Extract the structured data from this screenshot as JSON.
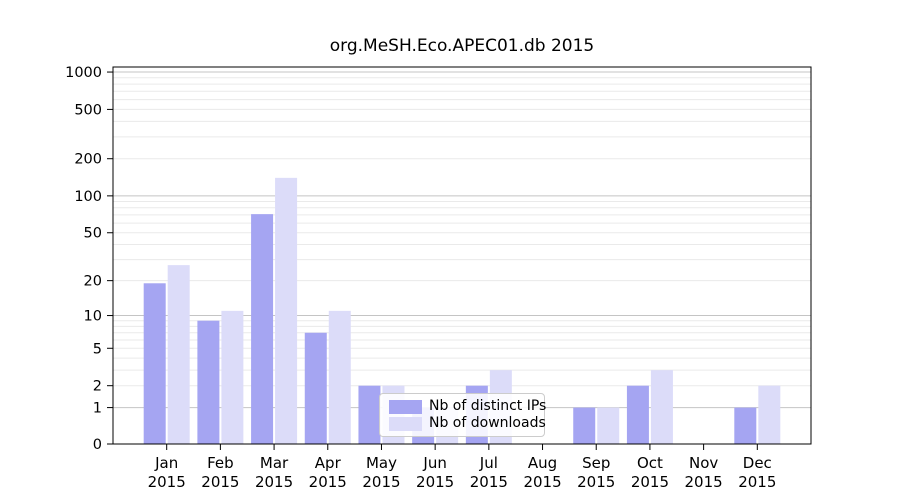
{
  "chart_data": {
    "type": "bar",
    "title": "org.MeSH.Eco.APEC01.db 2015",
    "categories": [
      "Jan",
      "Feb",
      "Mar",
      "Apr",
      "May",
      "Jun",
      "Jul",
      "Aug",
      "Sep",
      "Oct",
      "Nov",
      "Dec"
    ],
    "category_sub_label": "2015",
    "series": [
      {
        "name": "Nb of distinct IPs",
        "color": "#a5a5f2",
        "values": [
          19,
          9,
          71,
          7,
          2,
          1,
          2,
          0,
          1,
          2,
          0,
          1
        ]
      },
      {
        "name": "Nb of downloads",
        "color": "#dcdcf9",
        "values": [
          27,
          11,
          140,
          11,
          2,
          1,
          3,
          0,
          1,
          3,
          0,
          2
        ]
      }
    ],
    "yscale": "log1p",
    "ytick_labels": [
      0,
      1,
      2,
      5,
      10,
      20,
      50,
      100,
      200,
      500,
      1000
    ],
    "ylim": [
      0,
      1200
    ],
    "grid": {
      "major_color": "#c4c4c4",
      "minor_color": "#eaeaea",
      "major_at": [
        1,
        10,
        100,
        1000
      ]
    },
    "axis_color": "#000000",
    "legend_position": "inside, lower middle-left"
  }
}
